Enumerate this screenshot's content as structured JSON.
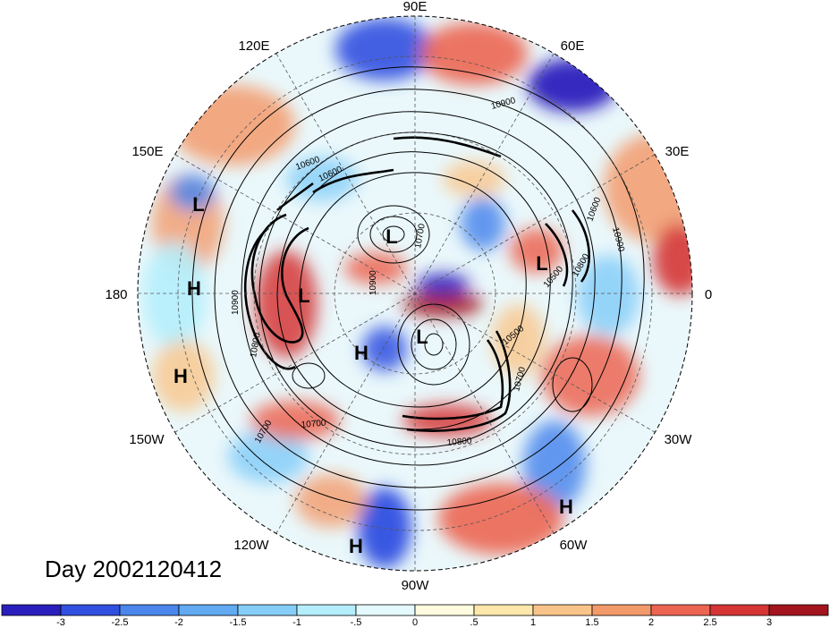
{
  "figure": {
    "date_title": "Day 2002120412",
    "longitude_labels": [
      "90E",
      "60E",
      "30E",
      "0",
      "30W",
      "60W",
      "90W",
      "120W",
      "150W",
      "180",
      "150E",
      "120E"
    ],
    "contour_labels": [
      "10900",
      "10600",
      "10700",
      "10900",
      "10800",
      "10600",
      "10900",
      "10700",
      "10500",
      "10800",
      "10800",
      "10700",
      "10700",
      "10600",
      "10900",
      "10500"
    ],
    "pressure_centers": [
      "L",
      "L",
      "L",
      "L",
      "L",
      "H",
      "H",
      "H",
      "H",
      "H"
    ]
  },
  "colorbar": {
    "colors": [
      "#2a1fbd",
      "#3050e0",
      "#4a86ec",
      "#62aaf2",
      "#86cef8",
      "#b4eefc",
      "#e4fafd",
      "#fefbdf",
      "#fde7ab",
      "#f9c48a",
      "#f39a6b",
      "#ec6552",
      "#d53535",
      "#a3141f"
    ],
    "tick_labels": [
      "-3",
      "-2.5",
      "-2",
      "-1.5",
      "-1",
      "-.5",
      "0",
      ".5",
      "1",
      "1.5",
      "2",
      "2.5",
      "3"
    ]
  }
}
